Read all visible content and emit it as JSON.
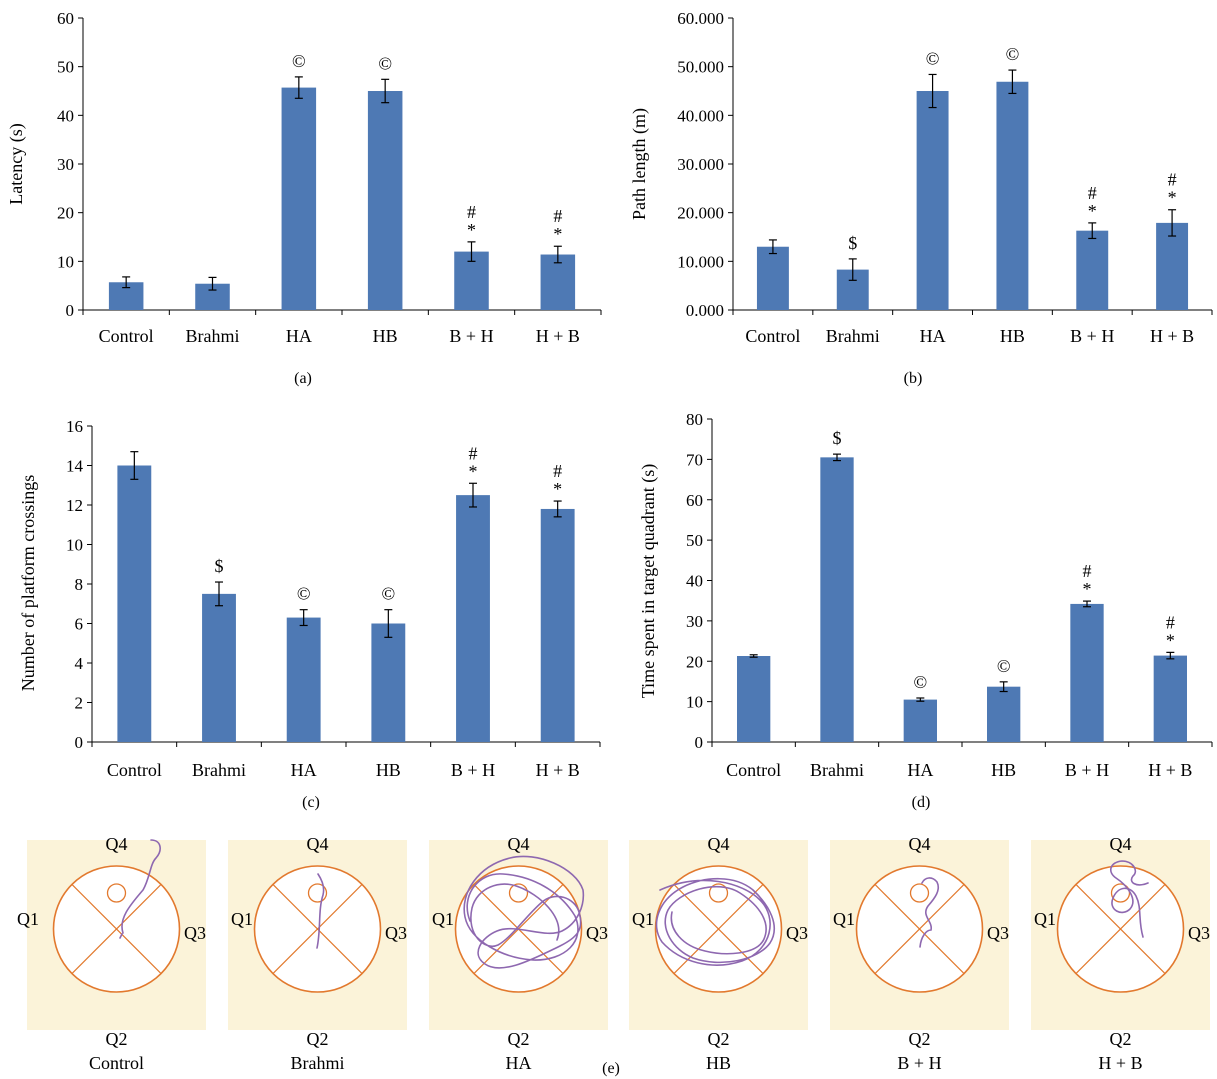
{
  "bar_color": "#4e79b4",
  "path_color": "#8e68b0",
  "pool_color": "#e2792e",
  "pool_bg": "#fbf3d9",
  "chart_data": [
    {
      "id": "a",
      "type": "bar",
      "panel_label": "(a)",
      "title": "",
      "xlabel": "",
      "ylabel": "Latency (s)",
      "categories": [
        "Control",
        "Brahmi",
        "HA",
        "HB",
        "B + H",
        "H + B"
      ],
      "values": [
        5.7,
        5.4,
        45.7,
        45.0,
        12.0,
        11.4
      ],
      "errors": [
        1.1,
        1.3,
        2.2,
        2.4,
        2.0,
        1.7
      ],
      "annotations": [
        "",
        "",
        "©",
        "©",
        "#\n*",
        "#\n*"
      ],
      "ylim": [
        0,
        60
      ],
      "yticks": [
        0,
        10,
        20,
        30,
        40,
        50,
        60
      ],
      "ytick_labels": [
        "0",
        "10",
        "20",
        "30",
        "40",
        "50",
        "60"
      ]
    },
    {
      "id": "b",
      "type": "bar",
      "panel_label": "(b)",
      "title": "",
      "xlabel": "",
      "ylabel": "Path length (m)",
      "categories": [
        "Control",
        "Brahmi",
        "HA",
        "HB",
        "B + H",
        "H + B"
      ],
      "values": [
        13.0,
        8.3,
        45.0,
        46.9,
        16.3,
        17.9
      ],
      "errors": [
        1.4,
        2.2,
        3.4,
        2.4,
        1.6,
        2.7
      ],
      "annotations": [
        "",
        "$",
        "©",
        "©",
        "#\n*",
        "#\n*"
      ],
      "ylim": [
        0,
        60
      ],
      "yticks": [
        0,
        10,
        20,
        30,
        40,
        50,
        60
      ],
      "ytick_labels": [
        "0.000",
        "10.000",
        "20.000",
        "30.000",
        "40.000",
        "50.000",
        "60.000"
      ]
    },
    {
      "id": "c",
      "type": "bar",
      "panel_label": "(c)",
      "title": "",
      "xlabel": "",
      "ylabel": "Number of platform crossings",
      "categories": [
        "Control",
        "Brahmi",
        "HA",
        "HB",
        "B + H",
        "H + B"
      ],
      "values": [
        14.0,
        7.5,
        6.3,
        6.0,
        12.5,
        11.8
      ],
      "errors": [
        0.7,
        0.6,
        0.4,
        0.7,
        0.6,
        0.4
      ],
      "annotations": [
        "",
        "$",
        "©",
        "©",
        "#\n*",
        "#\n*"
      ],
      "ylim": [
        0,
        16
      ],
      "yticks": [
        0,
        2,
        4,
        6,
        8,
        10,
        12,
        14,
        16
      ],
      "ytick_labels": [
        "0",
        "2",
        "4",
        "6",
        "8",
        "10",
        "12",
        "14",
        "16"
      ]
    },
    {
      "id": "d",
      "type": "bar",
      "panel_label": "(d)",
      "title": "",
      "xlabel": "",
      "ylabel": "Time spent in target quadrant (s)",
      "categories": [
        "Control",
        "Brahmi",
        "HA",
        "HB",
        "B + H",
        "H + B"
      ],
      "values": [
        21.3,
        70.5,
        10.5,
        13.7,
        34.2,
        21.4
      ],
      "errors": [
        0.3,
        0.8,
        0.4,
        1.2,
        0.7,
        0.8
      ],
      "annotations": [
        "",
        "$",
        "©",
        "©",
        "#\n*",
        "#\n*"
      ],
      "ylim": [
        0,
        80
      ],
      "yticks": [
        0,
        10,
        20,
        30,
        40,
        50,
        60,
        70,
        80
      ],
      "ytick_labels": [
        "0",
        "10",
        "20",
        "30",
        "40",
        "50",
        "60",
        "70",
        "80"
      ]
    }
  ],
  "tracks": {
    "panel_label": "(e)",
    "quadrant_labels": {
      "top": "Q4",
      "left": "Q1",
      "right": "Q3",
      "bottom": "Q2"
    },
    "groups": [
      "Control",
      "Brahmi",
      "HA",
      "HB",
      "B + H",
      "H + B"
    ]
  }
}
